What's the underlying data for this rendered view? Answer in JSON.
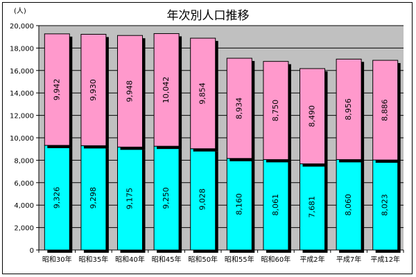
{
  "chart_data": {
    "type": "bar",
    "stacked": true,
    "title": "年次別人口推移",
    "unit_label": "(人)",
    "categories": [
      "昭和30年",
      "昭和35年",
      "昭和40年",
      "昭和45年",
      "昭和50年",
      "昭和55年",
      "昭和60年",
      "平成2年",
      "平成7年",
      "平成12年"
    ],
    "series": [
      {
        "values": [
          9326,
          9298,
          9175,
          9250,
          9028,
          8160,
          8061,
          7681,
          8060,
          8023
        ],
        "color": "#00ffff"
      },
      {
        "values": [
          9942,
          9930,
          9948,
          10042,
          9854,
          8934,
          8750,
          8490,
          8956,
          8886
        ],
        "color": "#ff99cc"
      }
    ],
    "value_labels": [
      [
        "9,326",
        "9,298",
        "9,175",
        "9,250",
        "9,028",
        "8,160",
        "8,061",
        "7,681",
        "8,060",
        "8,023"
      ],
      [
        "9,942",
        "9,930",
        "9,948",
        "10,042",
        "9,854",
        "8,934",
        "8,750",
        "8,490",
        "8,956",
        "8,886"
      ]
    ],
    "y_ticks": [
      "0",
      "2,000",
      "4,000",
      "6,000",
      "8,000",
      "10,000",
      "12,000",
      "14,000",
      "16,000",
      "18,000",
      "20,000"
    ],
    "ylim": [
      0,
      20000
    ],
    "grid": true,
    "plot_background": "#c0c0c0",
    "legend": "none"
  }
}
